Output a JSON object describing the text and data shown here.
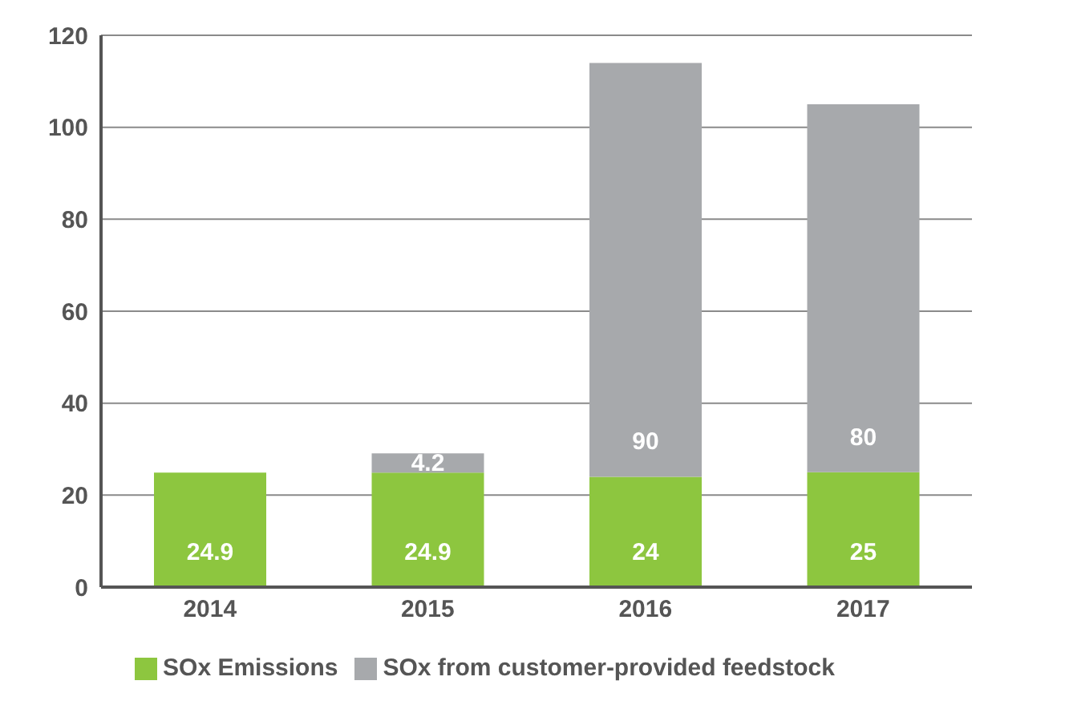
{
  "chart_data": {
    "type": "bar",
    "stacked": true,
    "categories": [
      "2014",
      "2015",
      "2016",
      "2017"
    ],
    "series": [
      {
        "name": "SOx Emissions",
        "color": "#8dc63f",
        "values": [
          24.9,
          24.9,
          24,
          25
        ],
        "value_labels": [
          "24.9",
          "24.9",
          "24",
          "25"
        ]
      },
      {
        "name": "SOx from customer-provided feedstock",
        "color": "#a7a9ac",
        "values": [
          null,
          4.2,
          90,
          80
        ],
        "value_labels": [
          null,
          "4.2",
          "90",
          "80"
        ]
      }
    ],
    "ylim": [
      0,
      120
    ],
    "yticks": [
      0,
      20,
      40,
      60,
      80,
      100,
      120
    ],
    "grid": "y",
    "legend": "bottom"
  }
}
